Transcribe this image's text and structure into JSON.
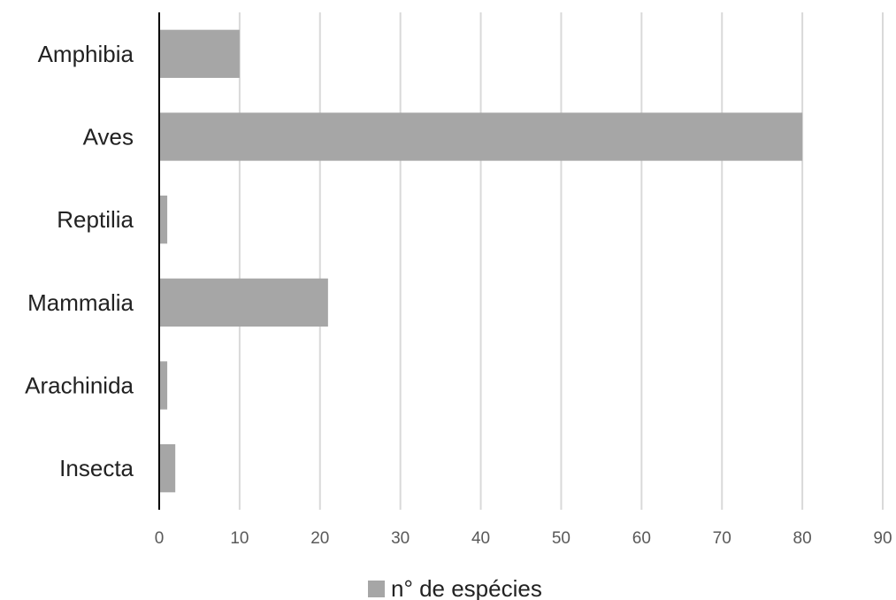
{
  "chart_data": {
    "type": "bar",
    "orientation": "horizontal",
    "categories": [
      "Amphibia",
      "Aves",
      "Reptilia",
      "Mammalia",
      "Arachinida",
      "Insecta"
    ],
    "series": [
      {
        "name": "n° de espécies",
        "values": [
          10,
          80,
          1,
          21,
          1,
          2
        ],
        "color": "#a6a6a6"
      }
    ],
    "xlim": [
      0,
      90
    ],
    "x_ticks": [
      "0",
      "10",
      "20",
      "30",
      "40",
      "50",
      "60",
      "70",
      "80",
      "90"
    ],
    "grid": "vertical",
    "legend_position": "bottom"
  },
  "colors": {
    "bar": "#a6a6a6",
    "grid": "#d9d9d9",
    "axis": "#000000"
  }
}
